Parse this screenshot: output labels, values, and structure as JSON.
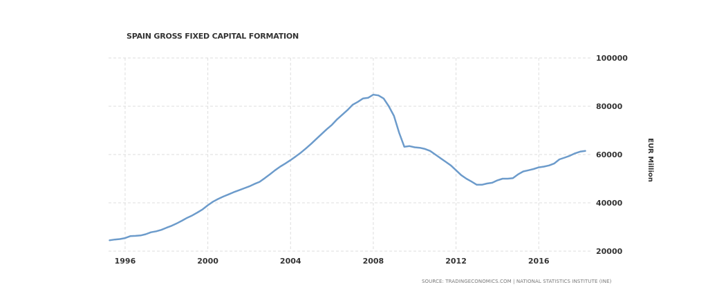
{
  "chart_data": {
    "type": "line",
    "title": "SPAIN GROSS FIXED CAPITAL FORMATION",
    "source": "SOURCE: TRADINGECONOMICS.COM  |  NATIONAL STATISTICS INSTITUTE (INE)",
    "ylabel": "EUR Million",
    "xlabel": "",
    "xlim": [
      1995.2,
      2018.6
    ],
    "ylim": [
      20000,
      100000
    ],
    "x_ticks": [
      1996,
      2000,
      2004,
      2008,
      2012,
      2016
    ],
    "y_ticks": [
      20000,
      40000,
      60000,
      80000,
      100000
    ],
    "grid": true,
    "line_color": "#6c9bcb",
    "series": [
      {
        "x": [
          1995.25,
          1995.5,
          1995.75,
          1996.0,
          1996.25,
          1996.5,
          1996.75,
          1997.0,
          1997.25,
          1997.5,
          1997.75,
          1998.0,
          1998.25,
          1998.5,
          1998.75,
          1999.0,
          1999.25,
          1999.5,
          1999.75,
          2000.0,
          2000.25,
          2000.5,
          2000.75,
          2001.0,
          2001.25,
          2001.5,
          2001.75,
          2002.0,
          2002.25,
          2002.5,
          2002.75,
          2003.0,
          2003.25,
          2003.5,
          2003.75,
          2004.0,
          2004.25,
          2004.5,
          2004.75,
          2005.0,
          2005.25,
          2005.5,
          2005.75,
          2006.0,
          2006.25,
          2006.5,
          2006.75,
          2007.0,
          2007.25,
          2007.5,
          2007.75,
          2008.0,
          2008.25,
          2008.5,
          2008.75,
          2009.0,
          2009.25,
          2009.5,
          2009.75,
          2010.0,
          2010.25,
          2010.5,
          2010.75,
          2011.0,
          2011.25,
          2011.5,
          2011.75,
          2012.0,
          2012.25,
          2012.5,
          2012.75,
          2013.0,
          2013.25,
          2013.5,
          2013.75,
          2014.0,
          2014.25,
          2014.5,
          2014.75,
          2015.0,
          2015.25,
          2015.5,
          2015.75,
          2016.0,
          2016.25,
          2016.5,
          2016.75,
          2017.0,
          2017.25,
          2017.5,
          2017.75,
          2018.0,
          2018.25
        ],
        "values": [
          24500,
          24800,
          25000,
          25400,
          26200,
          26300,
          26500,
          27000,
          27800,
          28200,
          28800,
          29700,
          30500,
          31500,
          32600,
          33800,
          34800,
          36000,
          37300,
          39000,
          40500,
          41600,
          42600,
          43500,
          44400,
          45200,
          46000,
          46800,
          47800,
          48700,
          50200,
          51800,
          53500,
          55000,
          56300,
          57700,
          59200,
          60800,
          62600,
          64500,
          66500,
          68500,
          70500,
          72300,
          74600,
          76500,
          78400,
          80600,
          81800,
          83200,
          83500,
          84800,
          84500,
          83200,
          80000,
          76000,
          69000,
          63200,
          63500,
          63000,
          62800,
          62300,
          61500,
          60000,
          58500,
          57000,
          55500,
          53500,
          51500,
          50000,
          48800,
          47500,
          47500,
          48000,
          48300,
          49300,
          50000,
          50000,
          50200,
          51800,
          53000,
          53500,
          54000,
          54700,
          55000,
          55500,
          56300,
          58000,
          58700,
          59500,
          60500,
          61200,
          61500
        ]
      }
    ]
  }
}
